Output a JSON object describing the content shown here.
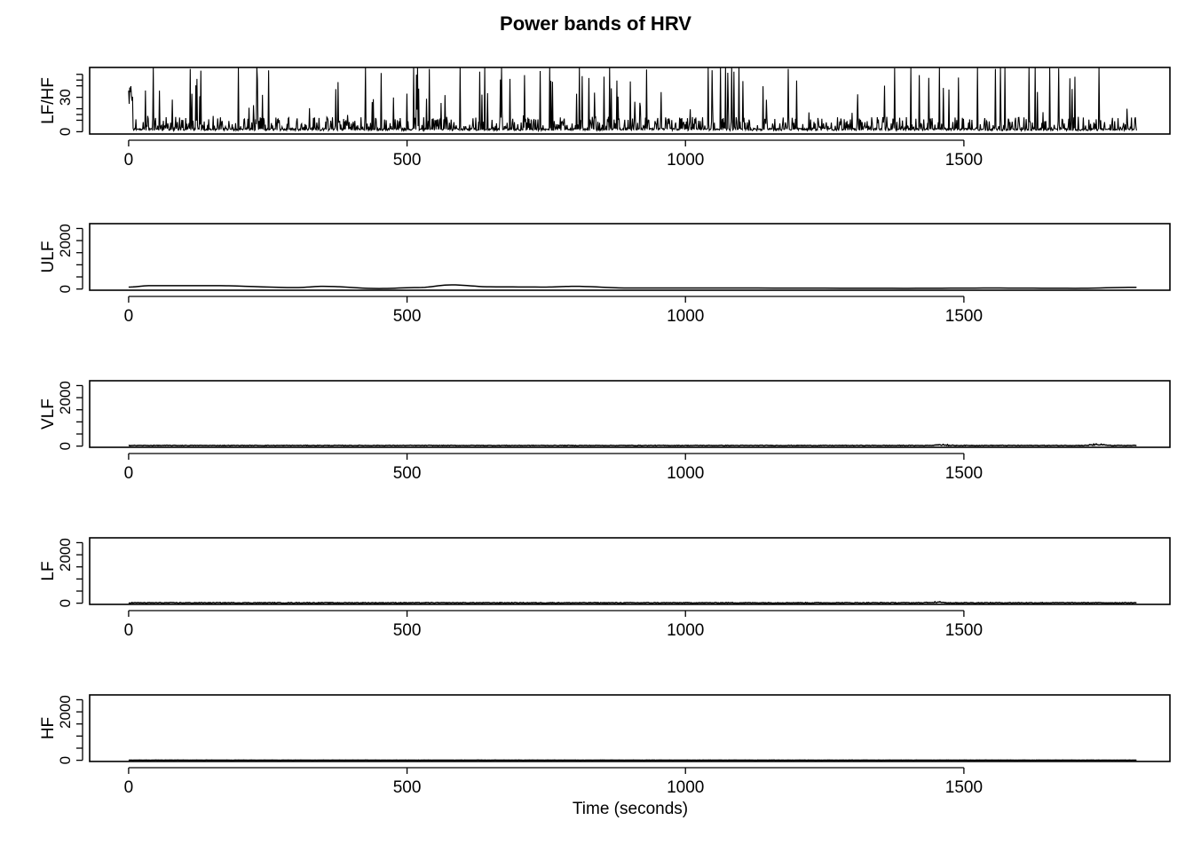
{
  "title": "Power bands of HRV",
  "xlabel": "Time (seconds)",
  "colors": {
    "line": "#000000",
    "frame": "#000000",
    "background": "#ffffff"
  },
  "chart_data": [
    {
      "type": "line",
      "ylabel": "LF/HF",
      "xlim": [
        -70,
        1870
      ],
      "ylim": [
        -2,
        56
      ],
      "x_ticks": [
        "0",
        "500",
        "1000",
        "1500"
      ],
      "x_tick_values": [
        0,
        500,
        1000,
        1500
      ],
      "y_ticks": [
        "0",
        "",
        "30",
        ""
      ],
      "y_tick_values": [
        0,
        15,
        30,
        45
      ],
      "y_minor_values": [
        10,
        20,
        40,
        50
      ],
      "x_range": [
        0,
        1810
      ],
      "series": [
        {
          "style": "spiky",
          "baseline": 1,
          "typical_peak": 12,
          "max": 56
        }
      ]
    },
    {
      "type": "line",
      "ylabel": "ULF",
      "xlim": [
        -70,
        1870
      ],
      "ylim": [
        -50,
        2700
      ],
      "x_ticks": [
        "0",
        "500",
        "1000",
        "1500"
      ],
      "x_tick_values": [
        0,
        500,
        1000,
        1500
      ],
      "y_ticks": [
        "0",
        "",
        "2000",
        ""
      ],
      "y_tick_values": [
        0,
        1000,
        2000,
        2500
      ],
      "y_minor_values": [
        500,
        1500
      ],
      "x_range": [
        0,
        1810
      ],
      "series": [
        {
          "style": "smooth",
          "points": [
            [
              0,
              80
            ],
            [
              40,
              140
            ],
            [
              150,
              140
            ],
            [
              300,
              60
            ],
            [
              350,
              110
            ],
            [
              450,
              20
            ],
            [
              520,
              60
            ],
            [
              580,
              170
            ],
            [
              650,
              90
            ],
            [
              750,
              80
            ],
            [
              800,
              110
            ],
            [
              900,
              40
            ],
            [
              1100,
              40
            ],
            [
              1400,
              30
            ],
            [
              1550,
              40
            ],
            [
              1700,
              30
            ],
            [
              1810,
              70
            ]
          ]
        }
      ]
    },
    {
      "type": "line",
      "ylabel": "VLF",
      "xlim": [
        -70,
        1870
      ],
      "ylim": [
        -50,
        2700
      ],
      "x_ticks": [
        "0",
        "500",
        "1000",
        "1500"
      ],
      "x_tick_values": [
        0,
        500,
        1000,
        1500
      ],
      "y_ticks": [
        "0",
        "",
        "2000",
        ""
      ],
      "y_tick_values": [
        0,
        1000,
        2000,
        2500
      ],
      "y_minor_values": [
        500,
        1500
      ],
      "x_range": [
        0,
        1810
      ],
      "series": [
        {
          "style": "noisy",
          "baseline": 25,
          "amp": 25,
          "bumps": [
            [
              1460,
              60
            ],
            [
              1740,
              70
            ]
          ]
        }
      ]
    },
    {
      "type": "line",
      "ylabel": "LF",
      "xlim": [
        -70,
        1870
      ],
      "ylim": [
        -50,
        2700
      ],
      "x_ticks": [
        "0",
        "500",
        "1000",
        "1500"
      ],
      "x_tick_values": [
        0,
        500,
        1000,
        1500
      ],
      "y_ticks": [
        "0",
        "",
        "2000",
        ""
      ],
      "y_tick_values": [
        0,
        1000,
        2000,
        2500
      ],
      "y_minor_values": [
        500,
        1500
      ],
      "x_range": [
        0,
        1810
      ],
      "series": [
        {
          "style": "noisy",
          "baseline": 15,
          "amp": 30,
          "bumps": [
            [
              1450,
              60
            ]
          ]
        }
      ]
    },
    {
      "type": "line",
      "ylabel": "HF",
      "xlim": [
        -70,
        1870
      ],
      "ylim": [
        -50,
        2700
      ],
      "x_ticks": [
        "0",
        "500",
        "1000",
        "1500"
      ],
      "x_tick_values": [
        0,
        500,
        1000,
        1500
      ],
      "y_ticks": [
        "0",
        "",
        "2000",
        ""
      ],
      "y_tick_values": [
        0,
        1000,
        2000,
        2500
      ],
      "y_minor_values": [
        500,
        1500
      ],
      "x_range": [
        0,
        1810
      ],
      "series": [
        {
          "style": "noisy",
          "baseline": 5,
          "amp": 6,
          "bumps": []
        }
      ]
    }
  ]
}
